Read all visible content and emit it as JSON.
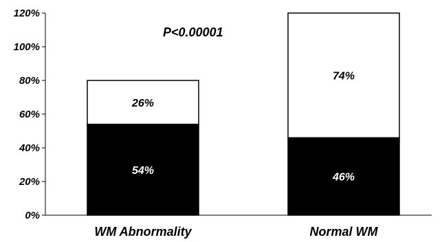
{
  "chart_data": {
    "type": "bar",
    "stacked": true,
    "categories": [
      "WM Abnormality",
      "Normal WM"
    ],
    "series": [
      {
        "values": [
          54,
          46
        ],
        "labels": [
          "54%",
          "46%"
        ],
        "color": "#000000",
        "label_color": "#ffffff"
      },
      {
        "values": [
          26,
          74
        ],
        "labels": [
          "26%",
          "74%"
        ],
        "color": "#ffffff",
        "label_color": "#000000"
      }
    ],
    "ylim": [
      0,
      120
    ],
    "yticks": [
      0,
      20,
      40,
      60,
      80,
      100,
      120
    ],
    "ytick_labels": [
      "0%",
      "20%",
      "40%",
      "60%",
      "80%",
      "100%",
      "120%"
    ],
    "annotation": "P<0.00001",
    "grid": false,
    "legend": "none",
    "title": "",
    "xlabel": "",
    "ylabel": ""
  }
}
